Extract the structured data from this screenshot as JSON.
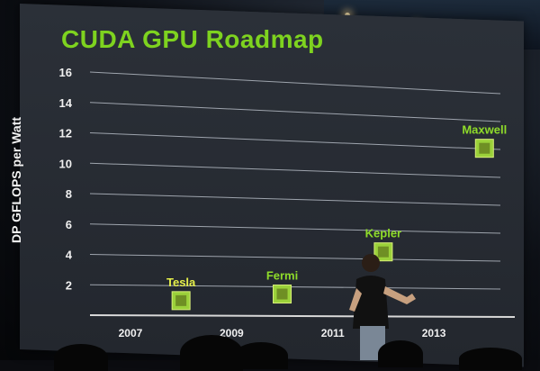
{
  "title": "CUDA GPU Roadmap",
  "chart_data": {
    "type": "scatter",
    "title": "CUDA GPU Roadmap",
    "ylabel": "DP GFLOPS per Watt",
    "xlabel": "",
    "ylim": [
      0,
      16
    ],
    "yticks": [
      2,
      4,
      6,
      8,
      10,
      12,
      14,
      16
    ],
    "xticks": [
      "2007",
      "2009",
      "2011",
      "2013"
    ],
    "grid": true,
    "points": [
      {
        "label": "Tesla",
        "x": 2008,
        "y": 1
      },
      {
        "label": "Fermi",
        "x": 2010,
        "y": 1.5
      },
      {
        "label": "Kepler",
        "x": 2012,
        "y": 4.5
      },
      {
        "label": "Maxwell",
        "x": 2014,
        "y": 12
      }
    ],
    "label_colors": {
      "Tesla": "#e6f04a",
      "Fermi": "#8fdc2a",
      "Kepler": "#8fdc2a",
      "Maxwell": "#8fdc2a"
    },
    "chip_color": "#9bd13a"
  }
}
